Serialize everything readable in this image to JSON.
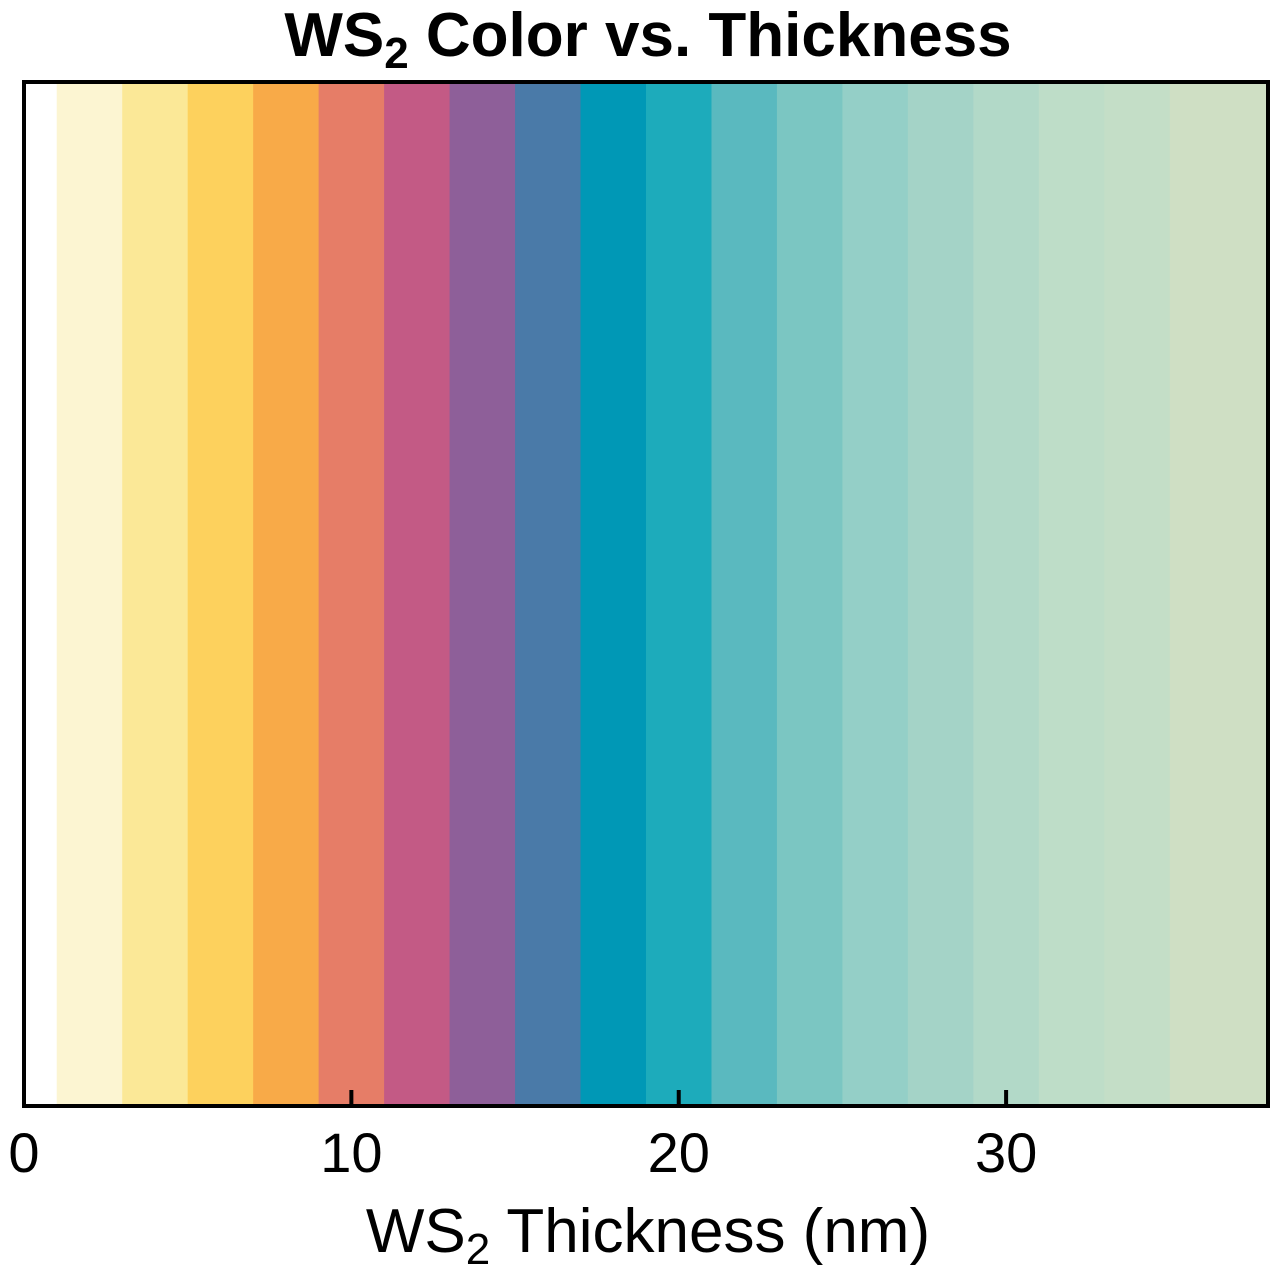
{
  "chart_data": {
    "type": "heatmap",
    "title": {
      "prefix": "WS",
      "subscript": "2",
      "suffix": " Color vs. Thickness"
    },
    "xlabel": {
      "prefix": "WS",
      "subscript": "2",
      "suffix": " Thickness (nm)"
    },
    "ylabel": "",
    "xlim": [
      0,
      38
    ],
    "xticks": [
      0,
      10,
      20,
      30
    ],
    "xtick_labels": [
      "0",
      "10",
      "20",
      "30"
    ],
    "grid": false,
    "bands": [
      {
        "x0": 0,
        "x1": 1,
        "color": "#FFFFFF"
      },
      {
        "x0": 1,
        "x1": 3,
        "color": "#FCF5D2"
      },
      {
        "x0": 3,
        "x1": 5,
        "color": "#FBE897"
      },
      {
        "x0": 5,
        "x1": 7,
        "color": "#FDD15D"
      },
      {
        "x0": 7,
        "x1": 9,
        "color": "#F8AA48"
      },
      {
        "x0": 9,
        "x1": 11,
        "color": "#E67D67"
      },
      {
        "x0": 11,
        "x1": 13,
        "color": "#C35A85"
      },
      {
        "x0": 13,
        "x1": 15,
        "color": "#8E5F99"
      },
      {
        "x0": 15,
        "x1": 17,
        "color": "#4A7AA8"
      },
      {
        "x0": 17,
        "x1": 19,
        "color": "#0098B6"
      },
      {
        "x0": 19,
        "x1": 21,
        "color": "#1DABBB"
      },
      {
        "x0": 21,
        "x1": 23,
        "color": "#5AB9BF"
      },
      {
        "x0": 23,
        "x1": 25,
        "color": "#7BC6C2"
      },
      {
        "x0": 25,
        "x1": 27,
        "color": "#94CFC7"
      },
      {
        "x0": 27,
        "x1": 29,
        "color": "#A4D3C7"
      },
      {
        "x0": 29,
        "x1": 31,
        "color": "#B2D9C8"
      },
      {
        "x0": 31,
        "x1": 33,
        "color": "#BEDDC8"
      },
      {
        "x0": 33,
        "x1": 35,
        "color": "#C4DEC7"
      },
      {
        "x0": 35,
        "x1": 38,
        "color": "#CFDFC4"
      }
    ],
    "frame_color": "#000000"
  }
}
